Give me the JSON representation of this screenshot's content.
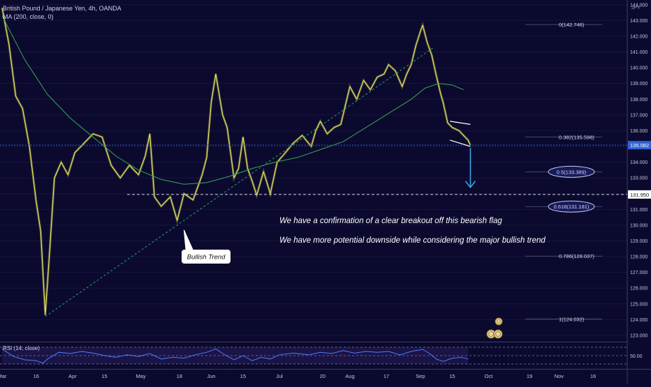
{
  "header": {
    "symbol": "British Pound / Japanese Yen, 4h, OANDA",
    "indicator": "MA (200, close, 0)",
    "currency": "JPY"
  },
  "chart_data": {
    "type": "line",
    "title": "British Pound / Japanese Yen, 4h, OANDA",
    "ylim": [
      122.6,
      144.3
    ],
    "y_ticks": [
      123,
      124,
      125,
      126,
      127,
      128,
      129,
      130,
      131,
      132,
      133,
      134,
      135,
      136,
      137,
      138,
      139,
      140,
      141,
      142,
      143,
      144
    ],
    "x_ticks": [
      {
        "label": "Mar",
        "day": 0
      },
      {
        "label": "16",
        "day": 15
      },
      {
        "label": "Apr",
        "day": 31
      },
      {
        "label": "15",
        "day": 45
      },
      {
        "label": "May",
        "day": 61
      },
      {
        "label": "18",
        "day": 78
      },
      {
        "label": "Jun",
        "day": 92
      },
      {
        "label": "15",
        "day": 106
      },
      {
        "label": "Jul",
        "day": 122
      },
      {
        "label": "20",
        "day": 141
      },
      {
        "label": "Aug",
        "day": 153
      },
      {
        "label": "17",
        "day": 169
      },
      {
        "label": "Sep",
        "day": 184
      },
      {
        "label": "15",
        "day": 198
      },
      {
        "label": "Oct",
        "day": 214
      },
      {
        "label": "19",
        "day": 232
      },
      {
        "label": "Nov",
        "day": 245
      },
      {
        "label": "16",
        "day": 260
      }
    ],
    "series": [
      {
        "name": "British Pound / Japanese Yen",
        "color": "#e8e86a",
        "points": [
          [
            0,
            143.8
          ],
          [
            3,
            141.5
          ],
          [
            6,
            138.2
          ],
          [
            9,
            137.4
          ],
          [
            12,
            135.0
          ],
          [
            15,
            131.5
          ],
          [
            17,
            129.6
          ],
          [
            19,
            124.3
          ],
          [
            21,
            128.5
          ],
          [
            23,
            133.0
          ],
          [
            26,
            134.0
          ],
          [
            29,
            133.2
          ],
          [
            32,
            134.6
          ],
          [
            36,
            135.2
          ],
          [
            40,
            135.8
          ],
          [
            44,
            135.6
          ],
          [
            48,
            133.8
          ],
          [
            52,
            133.0
          ],
          [
            56,
            133.8
          ],
          [
            60,
            133.2
          ],
          [
            63,
            134.4
          ],
          [
            65,
            135.8
          ],
          [
            67,
            131.8
          ],
          [
            70,
            131.2
          ],
          [
            74,
            131.8
          ],
          [
            77,
            130.3
          ],
          [
            80,
            132.0
          ],
          [
            84,
            131.6
          ],
          [
            88,
            133.2
          ],
          [
            90,
            134.3
          ],
          [
            92,
            137.8
          ],
          [
            94,
            139.6
          ],
          [
            97,
            137.0
          ],
          [
            99,
            136.2
          ],
          [
            102,
            133.0
          ],
          [
            104,
            133.6
          ],
          [
            106,
            135.6
          ],
          [
            108,
            133.6
          ],
          [
            110,
            132.8
          ],
          [
            112,
            131.9
          ],
          [
            115,
            133.4
          ],
          [
            118,
            132.0
          ],
          [
            121,
            134.0
          ],
          [
            124,
            134.5
          ],
          [
            128,
            135.2
          ],
          [
            132,
            135.7
          ],
          [
            136,
            135.0
          ],
          [
            138,
            136.0
          ],
          [
            140,
            136.6
          ],
          [
            143,
            135.8
          ],
          [
            146,
            136.2
          ],
          [
            149,
            136.4
          ],
          [
            151,
            137.6
          ],
          [
            153,
            138.8
          ],
          [
            156,
            138.0
          ],
          [
            159,
            139.2
          ],
          [
            162,
            138.6
          ],
          [
            165,
            139.4
          ],
          [
            168,
            139.6
          ],
          [
            170,
            140.2
          ],
          [
            173,
            139.8
          ],
          [
            176,
            138.8
          ],
          [
            178,
            139.6
          ],
          [
            180,
            140.2
          ],
          [
            182,
            141.4
          ],
          [
            184,
            142.3
          ],
          [
            185,
            142.7
          ],
          [
            187,
            141.6
          ],
          [
            189,
            140.8
          ],
          [
            191,
            139.5
          ],
          [
            193,
            138.3
          ],
          [
            194,
            137.8
          ],
          [
            196,
            136.5
          ],
          [
            198,
            136.2
          ],
          [
            201,
            136.0
          ],
          [
            203,
            135.7
          ],
          [
            205,
            135.4
          ],
          [
            206,
            135.08
          ]
        ]
      },
      {
        "name": "MA (200, close, 0)",
        "color": "#3aa657",
        "points": [
          [
            0,
            143.3
          ],
          [
            10,
            140.5
          ],
          [
            20,
            138.3
          ],
          [
            30,
            136.8
          ],
          [
            40,
            135.6
          ],
          [
            50,
            134.4
          ],
          [
            60,
            133.5
          ],
          [
            70,
            132.9
          ],
          [
            80,
            132.6
          ],
          [
            90,
            132.7
          ],
          [
            100,
            133.1
          ],
          [
            110,
            133.6
          ],
          [
            120,
            134.0
          ],
          [
            130,
            134.3
          ],
          [
            140,
            134.8
          ],
          [
            150,
            135.3
          ],
          [
            160,
            136.2
          ],
          [
            170,
            137.1
          ],
          [
            180,
            138.0
          ],
          [
            186,
            138.7
          ],
          [
            192,
            139.0
          ],
          [
            198,
            138.9
          ],
          [
            203,
            138.6
          ]
        ]
      },
      {
        "name": "RSI (14, close)",
        "color": "#4a7fff",
        "points": [
          [
            0,
            66
          ],
          [
            5,
            48
          ],
          [
            10,
            40
          ],
          [
            15,
            38
          ],
          [
            18,
            32
          ],
          [
            20,
            42
          ],
          [
            25,
            58
          ],
          [
            30,
            55
          ],
          [
            35,
            60
          ],
          [
            40,
            56
          ],
          [
            45,
            50
          ],
          [
            50,
            46
          ],
          [
            55,
            52
          ],
          [
            60,
            48
          ],
          [
            65,
            55
          ],
          [
            70,
            42
          ],
          [
            75,
            46
          ],
          [
            80,
            44
          ],
          [
            85,
            52
          ],
          [
            90,
            58
          ],
          [
            94,
            66
          ],
          [
            98,
            52
          ],
          [
            102,
            40
          ],
          [
            106,
            50
          ],
          [
            110,
            38
          ],
          [
            114,
            46
          ],
          [
            118,
            42
          ],
          [
            122,
            52
          ],
          [
            128,
            56
          ],
          [
            135,
            52
          ],
          [
            140,
            58
          ],
          [
            145,
            55
          ],
          [
            150,
            62
          ],
          [
            155,
            56
          ],
          [
            160,
            60
          ],
          [
            165,
            58
          ],
          [
            170,
            60
          ],
          [
            175,
            52
          ],
          [
            180,
            60
          ],
          [
            185,
            65
          ],
          [
            188,
            55
          ],
          [
            191,
            42
          ],
          [
            194,
            36
          ],
          [
            198,
            44
          ],
          [
            202,
            46
          ],
          [
            205,
            42
          ]
        ]
      }
    ],
    "rsi": {
      "label": "RSI (14, close)",
      "ylim": [
        20,
        80
      ],
      "levels": [
        70,
        50,
        30
      ],
      "level_label": "50.00"
    },
    "current_price": {
      "value": 135.082,
      "label": "135.082",
      "color": "#2f62d8"
    },
    "support_level": {
      "value": 131.95,
      "label": "131.950",
      "day_from": 55
    },
    "trendline": {
      "label": "Bullish Trend",
      "from": [
        19,
        124.2
      ],
      "to": [
        190,
        141.3
      ]
    },
    "flag": {
      "upper": [
        [
          197,
          136.6
        ],
        [
          206,
          136.4
        ]
      ],
      "lower": [
        [
          197,
          135.4
        ],
        [
          206,
          135.0
        ]
      ]
    },
    "arrow": {
      "from": [
        206,
        134.9
      ],
      "to": [
        206,
        132.4
      ],
      "color": "#3aa3e6"
    },
    "fibonacci": [
      {
        "label": "0(142.746)",
        "value": 142.746,
        "highlight": false
      },
      {
        "label": "0.382(135.598)",
        "value": 135.598,
        "highlight": false
      },
      {
        "label": "0.5(133.389)",
        "value": 133.389,
        "highlight": true
      },
      {
        "label": "0.618(131.181)",
        "value": 131.181,
        "highlight": true
      },
      {
        "label": "0.786(128.037)",
        "value": 128.037,
        "highlight": false
      },
      {
        "label": "1(124.032)",
        "value": 124.032,
        "highlight": false
      }
    ],
    "annotations": [
      "We have a confirmation of a clear breakout off this bearish flag",
      "We have more potential downside while considering the major bullish trend"
    ]
  }
}
